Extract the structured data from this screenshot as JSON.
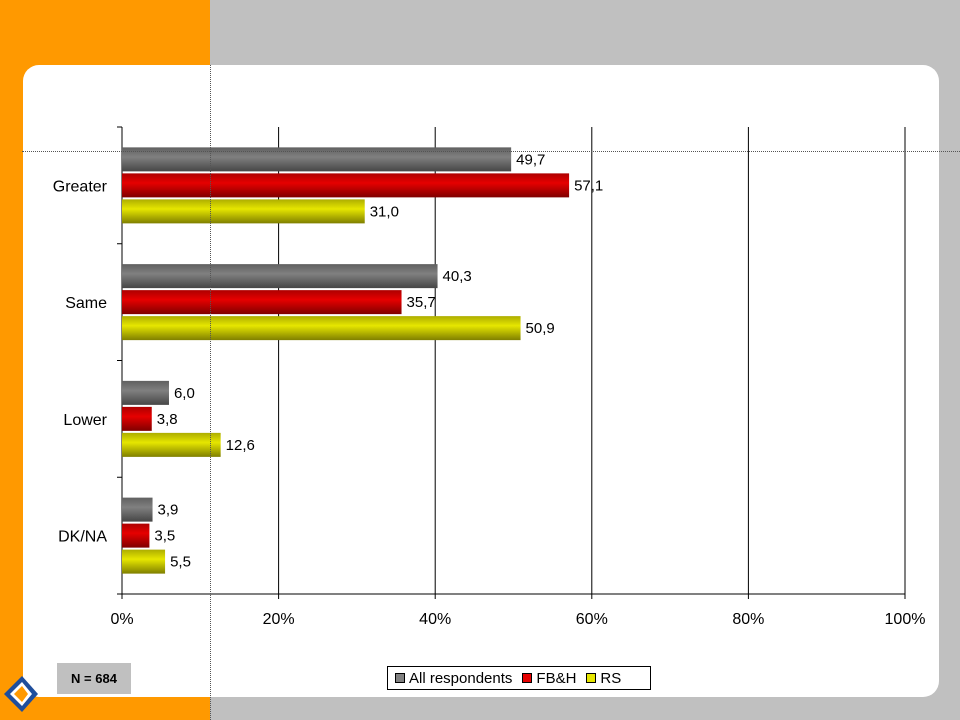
{
  "colors": {
    "background": "#c0c0c0",
    "accent": "#ff9900",
    "card": "#ffffff"
  },
  "note": "N = 684",
  "chart_data": {
    "type": "bar",
    "orientation": "horizontal",
    "categories": [
      "Greater",
      "Same",
      "Lower",
      "DK/NA"
    ],
    "series": [
      {
        "name": "All respondents",
        "color": "#808080",
        "values": [
          49.7,
          40.3,
          6.0,
          3.9
        ],
        "labels": [
          "49,7",
          "40,3",
          "6,0",
          "3,9"
        ]
      },
      {
        "name": "FB&H",
        "color": "#e60000",
        "values": [
          57.1,
          35.7,
          3.8,
          3.5
        ],
        "labels": [
          "57,1",
          "35,7",
          "3,8",
          "3,5"
        ]
      },
      {
        "name": "RS",
        "color": "#e6e600",
        "values": [
          31.0,
          50.9,
          12.6,
          5.5
        ],
        "labels": [
          "31,0",
          "50,9",
          "12,6",
          "5,5"
        ]
      }
    ],
    "xlim": [
      0,
      100
    ],
    "xticks": [
      "0%",
      "20%",
      "40%",
      "60%",
      "80%",
      "100%"
    ],
    "grid": true,
    "legend_position": "bottom"
  }
}
